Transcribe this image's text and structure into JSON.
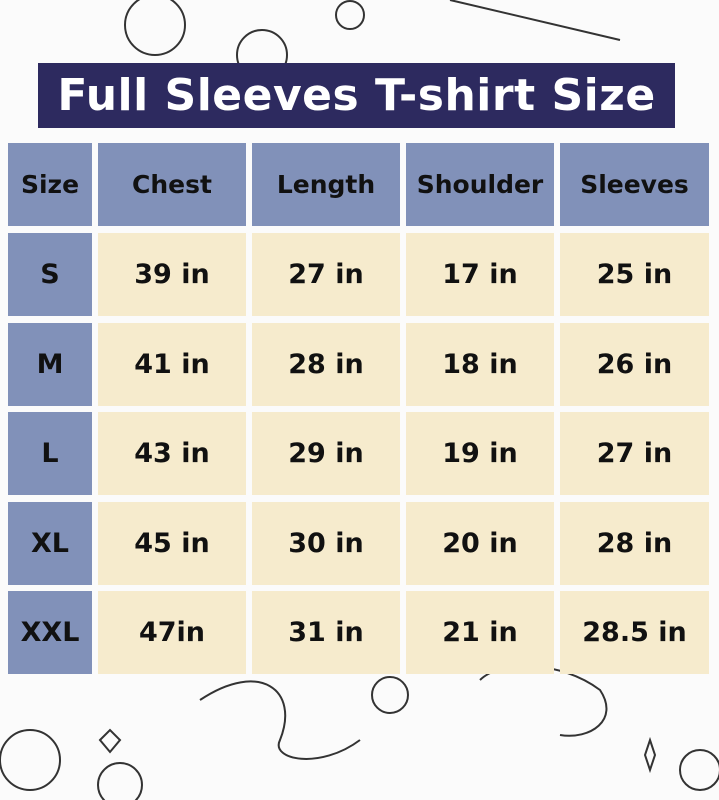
{
  "title": "Full Sleeves T-shirt Size",
  "colors": {
    "title_bg": "#2d2a5f",
    "header_bg": "#8191b9",
    "cell_bg": "#f6ebcd"
  },
  "table": {
    "headers": [
      "Size",
      "Chest",
      "Length",
      "Shoulder",
      "Sleeves"
    ],
    "rows": [
      [
        "S",
        "39 in",
        "27 in",
        "17 in",
        "25 in"
      ],
      [
        "M",
        "41 in",
        "28 in",
        "18 in",
        "26 in"
      ],
      [
        "L",
        "43 in",
        "29 in",
        "19 in",
        "27 in"
      ],
      [
        "XL",
        "45 in",
        "30 in",
        "20 in",
        "28 in"
      ],
      [
        "XXL",
        "47in",
        "31 in",
        "21 in",
        "28.5 in"
      ]
    ]
  }
}
